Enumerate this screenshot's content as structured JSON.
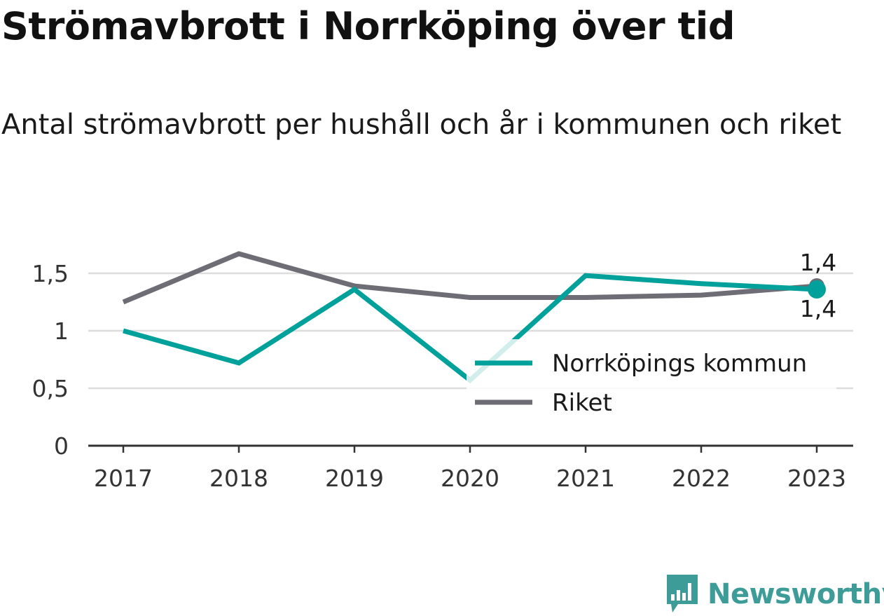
{
  "header": {
    "title": "Strömavbrott i Norrköping över tid",
    "subtitle": "Antal strömavbrott per hushåll och år i kommunen och riket"
  },
  "brand": {
    "name": "Newsworthy",
    "color": "#3d9c98",
    "icon": "bar-chart-badge-icon"
  },
  "chart_data": {
    "type": "line",
    "title": "Strömavbrott i Norrköping över tid",
    "subtitle": "Antal strömavbrott per hushåll och år i kommunen och riket",
    "xlabel": "",
    "ylabel": "",
    "x": [
      "2017",
      "2018",
      "2019",
      "2020",
      "2021",
      "2022",
      "2023"
    ],
    "ylim": [
      0,
      1.8
    ],
    "yticks": [
      0,
      0.5,
      1,
      1.5
    ],
    "ytick_labels": [
      "0",
      "0,5",
      "1",
      "1,5"
    ],
    "grid": "horizontal",
    "legend_position": "bottom-right",
    "series": [
      {
        "name": "Norrköpings kommun",
        "color": "#00a19a",
        "values": [
          1.0,
          0.72,
          1.36,
          0.57,
          1.48,
          1.41,
          1.36
        ],
        "last_label": "1,4"
      },
      {
        "name": "Riket",
        "color": "#6e6d75",
        "values": [
          1.25,
          1.67,
          1.39,
          1.29,
          1.29,
          1.31,
          1.39
        ],
        "last_label": "1,4"
      }
    ]
  }
}
